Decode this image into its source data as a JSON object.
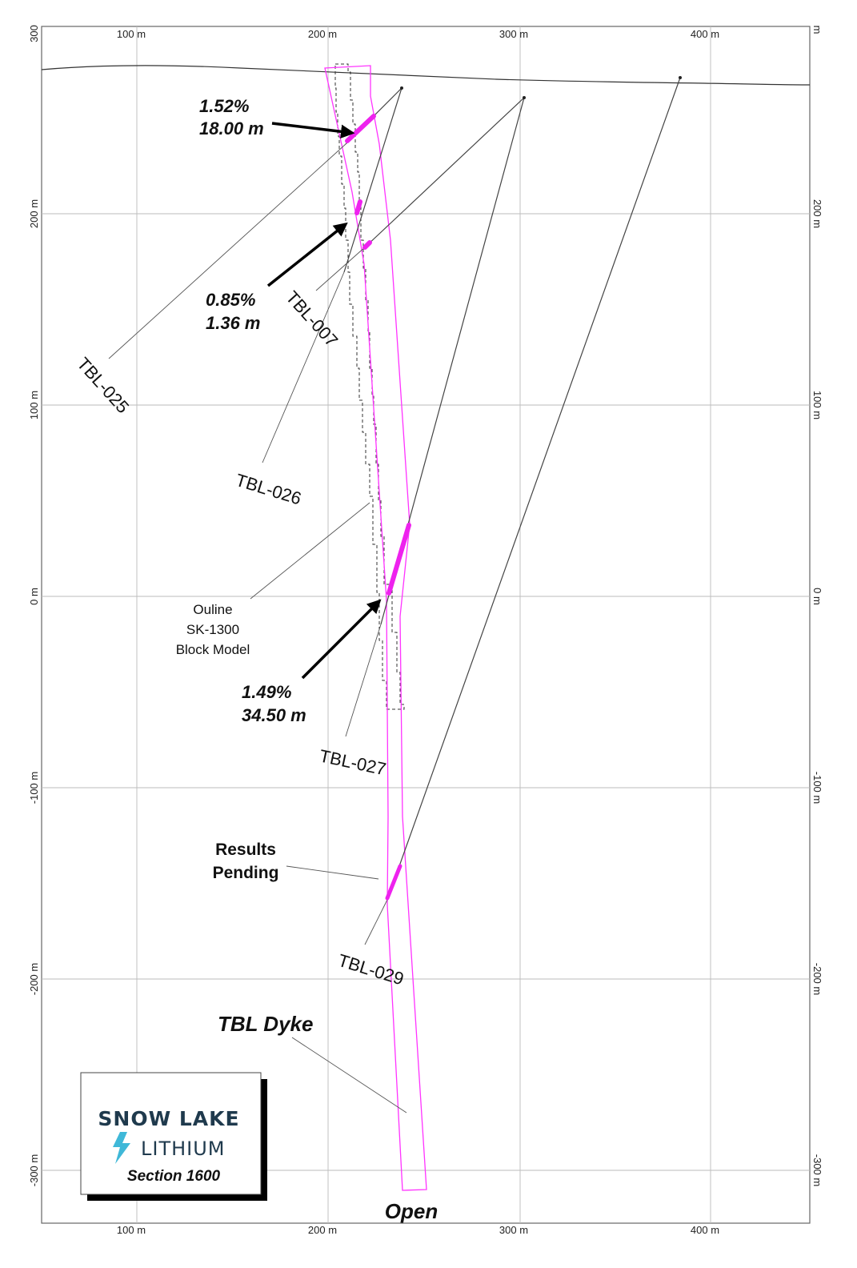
{
  "axes": {
    "x_ticks": [
      "100 m",
      "200 m",
      "300 m",
      "400 m"
    ],
    "y_ticks_left": [
      "300",
      "200 m",
      "100 m",
      "0 m",
      "-100 m",
      "-200 m",
      "-300 m"
    ],
    "y_ticks_right": [
      "m",
      "200 m",
      "100 m",
      "0 m",
      "-100 m",
      "-200 m",
      "-300 m"
    ]
  },
  "drillholes": {
    "tbl_025": "TBL-025",
    "tbl_007": "TBL-007",
    "tbl_026": "TBL-026",
    "tbl_027": "TBL-027",
    "tbl_029": "TBL-029"
  },
  "intercepts": {
    "a_grade": "1.52%",
    "a_length": "18.00 m",
    "b_grade": "0.85%",
    "b_length": "1.36 m",
    "c_grade": "1.49%",
    "c_length": "34.50 m"
  },
  "outline": {
    "line1": "Ouline",
    "line2": "SK-1300",
    "line3": "Block Model"
  },
  "pending": {
    "line1": "Results",
    "line2": "Pending"
  },
  "dyke_label": "TBL Dyke",
  "open_label": "Open",
  "logo": {
    "line1": "SNOW LAKE",
    "line2": "LITHIUM",
    "section": "Section 1600"
  },
  "colors": {
    "dyke": "#ff33ff",
    "intercept": "#ee22ee",
    "logo_text": "#1f3a4d",
    "logo_bolt": "#3fb8d8"
  }
}
